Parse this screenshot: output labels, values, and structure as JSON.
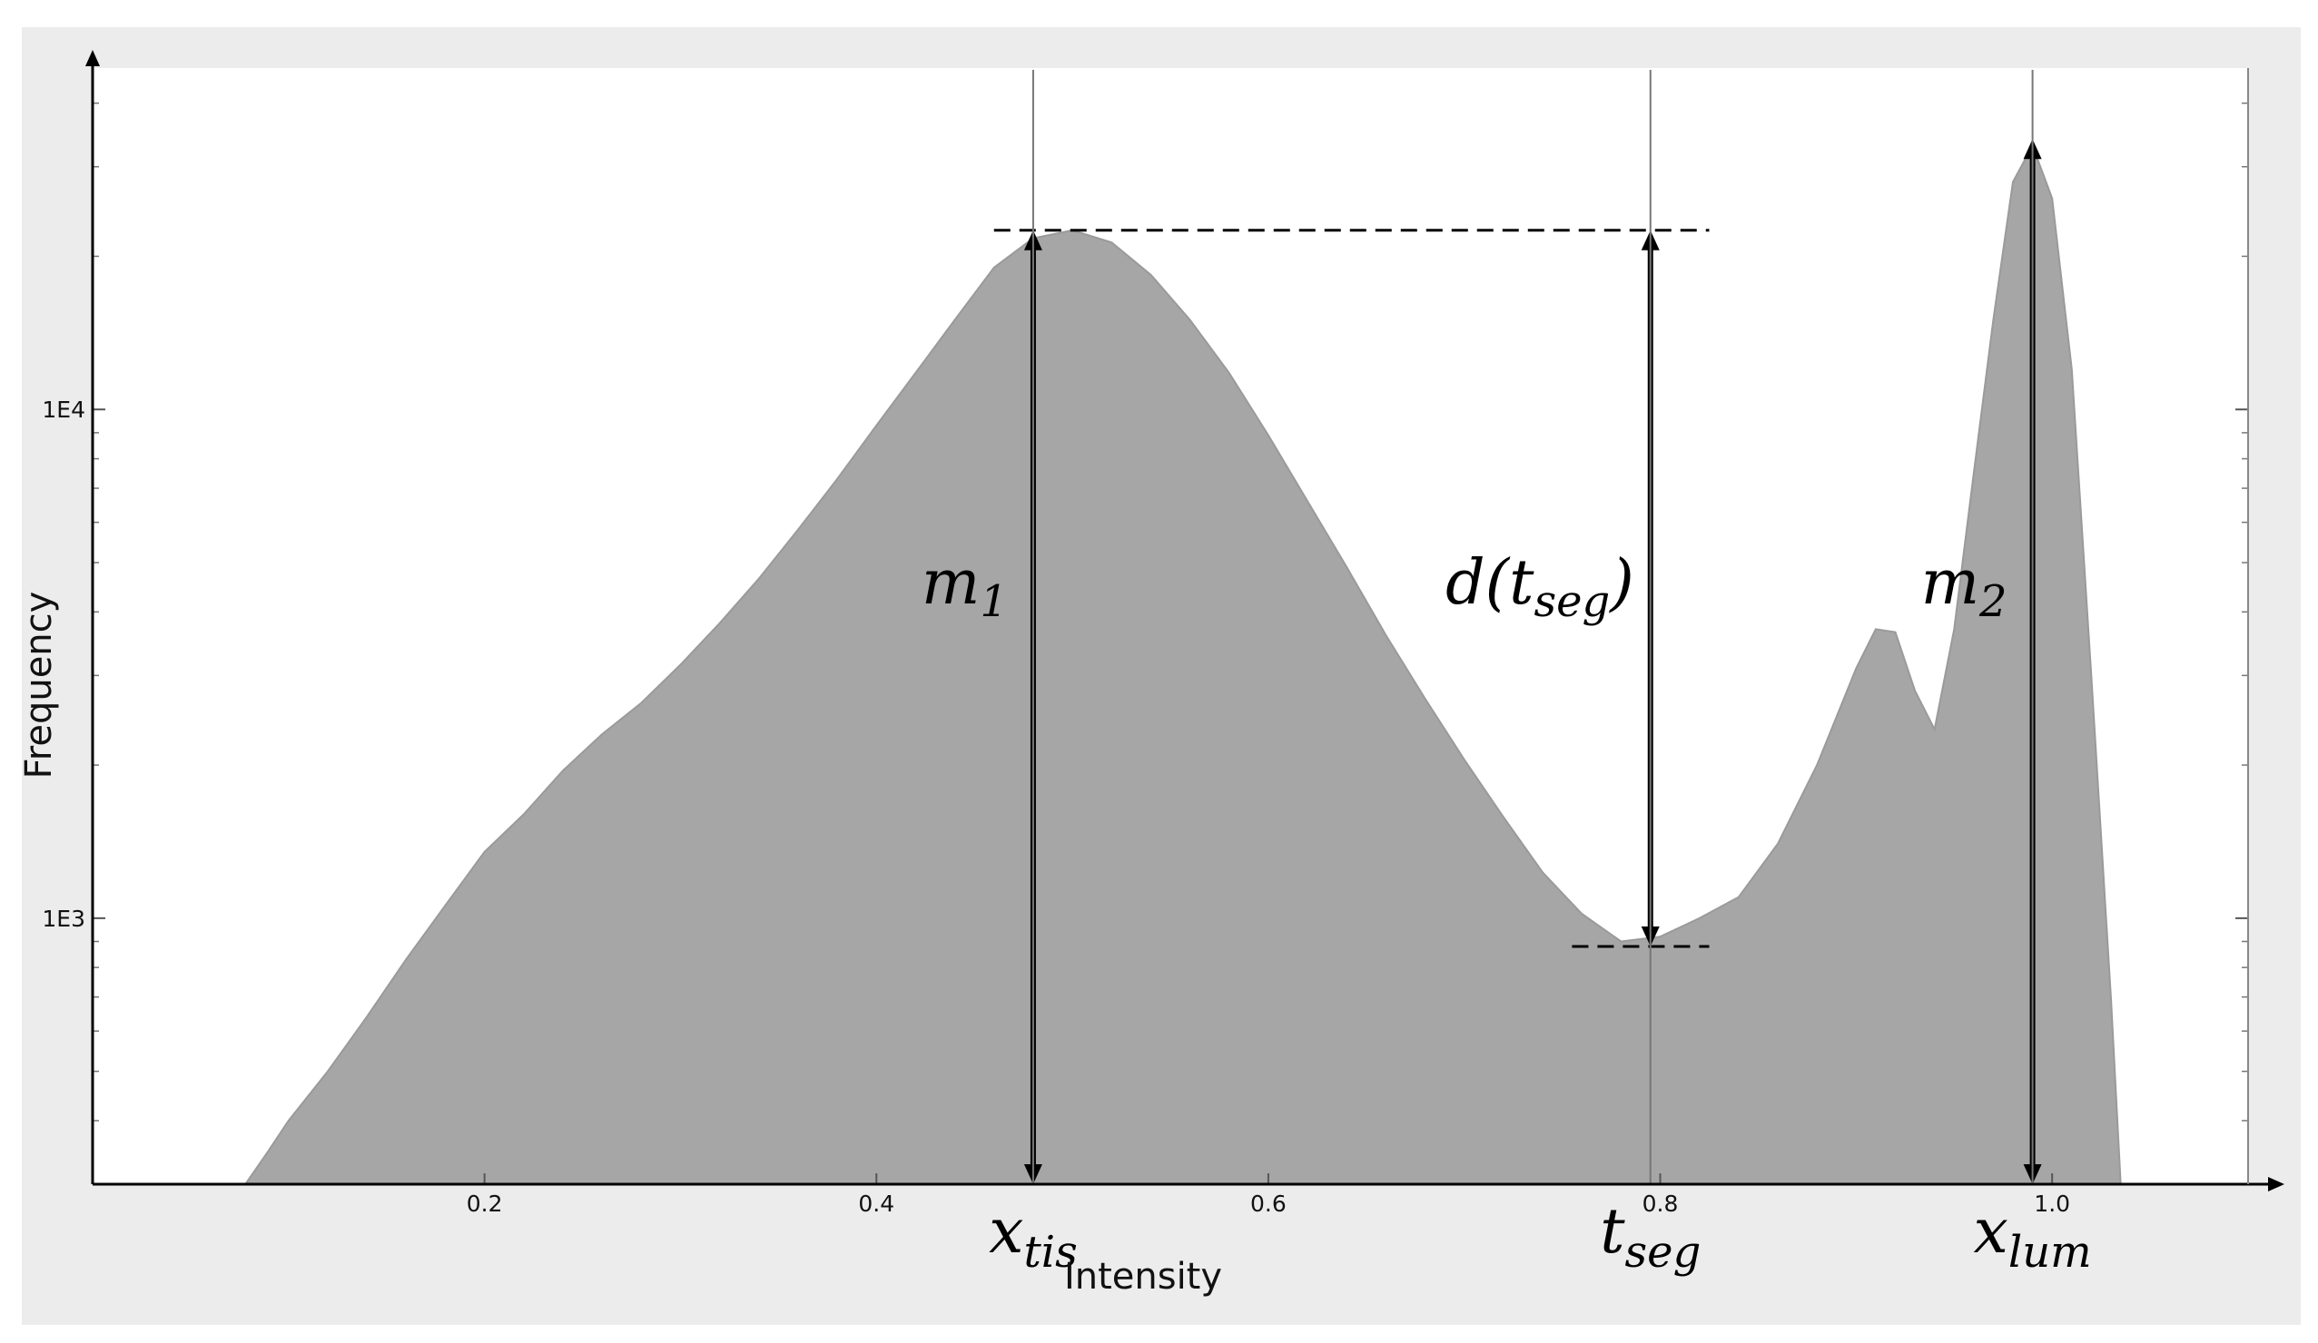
{
  "chart_data": {
    "type": "area",
    "xlabel": "Intensity",
    "ylabel": "Frequency",
    "y_scale": "log",
    "xlim": [
      0.0,
      1.1
    ],
    "ylim": [
      300,
      45000
    ],
    "x_ticks": [
      {
        "value": 0.2,
        "label": "0.2"
      },
      {
        "value": 0.4,
        "label": "0.4"
      },
      {
        "value": 0.6,
        "label": "0.6"
      },
      {
        "value": 0.8,
        "label": "0.8"
      },
      {
        "value": 1.0,
        "label": "1.0"
      }
    ],
    "y_ticks": [
      {
        "value": 1000,
        "label": "1E3"
      },
      {
        "value": 10000,
        "label": "1E4"
      }
    ],
    "fill_color": "#a6a6a6",
    "series": [
      {
        "x": [
          0.078,
          0.09,
          0.1,
          0.12,
          0.14,
          0.16,
          0.18,
          0.2,
          0.22,
          0.24,
          0.26,
          0.28,
          0.3,
          0.32,
          0.34,
          0.36,
          0.38,
          0.4,
          0.42,
          0.44,
          0.46,
          0.48,
          0.5,
          0.52,
          0.54,
          0.56,
          0.58,
          0.6,
          0.62,
          0.64,
          0.66,
          0.68,
          0.7,
          0.72,
          0.74,
          0.76,
          0.78,
          0.8,
          0.82,
          0.84,
          0.86,
          0.88,
          0.9,
          0.91,
          0.92,
          0.93,
          0.94,
          0.95,
          0.96,
          0.97,
          0.98,
          0.99,
          1.0,
          1.01,
          1.02,
          1.03,
          1.035
        ],
        "y": [
          300,
          350,
          400,
          500,
          640,
          830,
          1060,
          1350,
          1600,
          1950,
          2300,
          2650,
          3150,
          3800,
          4650,
          5800,
          7300,
          9300,
          11800,
          15000,
          19000,
          21700,
          22500,
          21300,
          18400,
          15000,
          11800,
          8900,
          6600,
          4900,
          3600,
          2700,
          2050,
          1580,
          1230,
          1020,
          900,
          920,
          1000,
          1100,
          1400,
          2000,
          3100,
          3700,
          3650,
          2800,
          2350,
          3700,
          7500,
          15000,
          28000,
          33000,
          26000,
          12000,
          3000,
          700,
          300
        ]
      }
    ],
    "annotations": [
      {
        "text": "m",
        "sub": "1",
        "kind": "height-arrow",
        "x": 0.48,
        "y_from": 300,
        "y_to": 22500
      },
      {
        "text": "d(t",
        "sub": "seg",
        "suffix": ")",
        "kind": "distance-arrow",
        "x": 0.795,
        "y_from": 880,
        "y_to": 22500
      },
      {
        "text": "m",
        "sub": "2",
        "kind": "height-arrow",
        "x": 0.99,
        "y_from": 300,
        "y_to": 34000
      },
      {
        "text": "x",
        "sub": "tis",
        "kind": "x-marker",
        "x": 0.48
      },
      {
        "text": "t",
        "sub": "seg",
        "kind": "x-marker",
        "x": 0.795
      },
      {
        "text": "x",
        "sub": "lum",
        "kind": "x-marker",
        "x": 0.99
      }
    ],
    "reference_lines": {
      "peak_level": 22500,
      "valley_level": 880,
      "peak_span": [
        0.46,
        0.825
      ],
      "valley_span": [
        0.755,
        0.825
      ]
    },
    "grid": false,
    "legend": "none"
  }
}
